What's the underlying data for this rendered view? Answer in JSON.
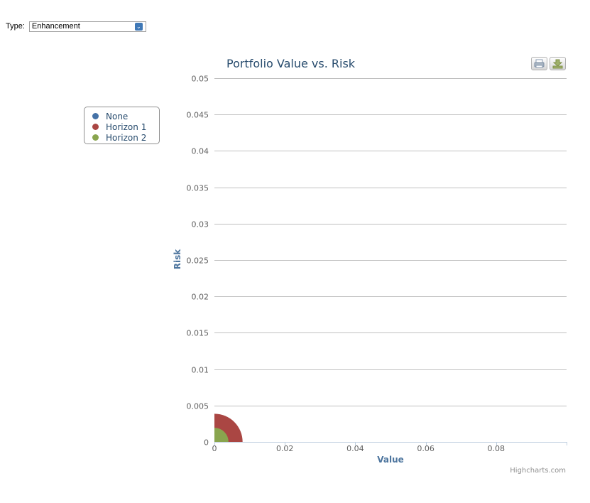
{
  "type_selector": {
    "label": "Type:",
    "value": "Enhancement"
  },
  "chart_data": {
    "type": "scatter",
    "title": "Portfolio Value vs. Risk",
    "xlabel": "Value",
    "ylabel": "Risk",
    "xlim": [
      0,
      0.1
    ],
    "ylim": [
      0,
      0.05
    ],
    "x_ticks": [
      0,
      0.02,
      0.04,
      0.06,
      0.08
    ],
    "x_tick_labels": [
      "0",
      "0.02",
      "0.04",
      "0.06",
      "0.08"
    ],
    "y_ticks": [
      0,
      0.005,
      0.01,
      0.015,
      0.02,
      0.025,
      0.03,
      0.035,
      0.04,
      0.045,
      0.05
    ],
    "y_tick_labels": [
      "0",
      "0.005",
      "0.01",
      "0.015",
      "0.02",
      "0.025",
      "0.03",
      "0.035",
      "0.04",
      "0.045",
      "0.05"
    ],
    "legend_position": "left",
    "series": [
      {
        "name": "None",
        "color": "#4572a7",
        "points": []
      },
      {
        "name": "Horizon 1",
        "color": "#aa4643",
        "points": [
          {
            "x": 0,
            "y": 0,
            "size": 0.008
          }
        ]
      },
      {
        "name": "Horizon 2",
        "color": "#89a54e",
        "points": [
          {
            "x": 0,
            "y": 0,
            "size": 0.004
          }
        ]
      }
    ],
    "credits": "Highcharts.com"
  },
  "export": {
    "print_icon": "printer-icon",
    "download_icon": "download-icon"
  }
}
